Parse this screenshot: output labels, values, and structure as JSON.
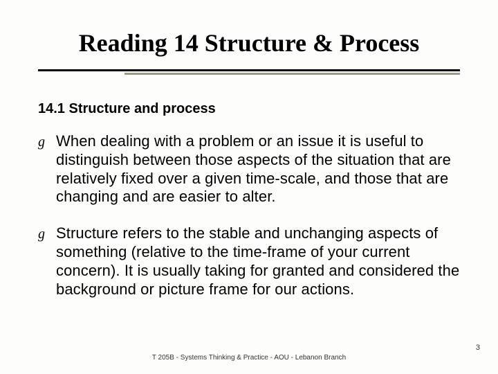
{
  "slide": {
    "title": "Reading 14 Structure & Process",
    "subheading": "14.1 Structure and process",
    "bullet_glyph": "g",
    "bullets": [
      "When dealing with a problem or an issue it is useful to distinguish between those aspects of the situation that are relatively fixed over a given time-scale, and those that are changing and are easier to alter.",
      "Structure refers to the stable and unchanging aspects of something (relative to the time-frame of your current concern). It is usually taking for granted and considered the background or picture frame for our actions."
    ],
    "footer": "T 205B - Systems Thinking & Practice - AOU - Lebanon Branch",
    "page_number": "3"
  },
  "style": {
    "background_color": "#fdfdfb",
    "title_font": "Times New Roman",
    "title_fontsize": 36,
    "title_weight": "bold",
    "title_color": "#000000",
    "subheading_fontsize": 20,
    "subheading_weight": "bold",
    "body_fontsize": 22,
    "body_color": "#000000",
    "rule_color_primary": "#000000",
    "rule_color_secondary": "#9a9a88",
    "footer_fontsize": 10,
    "pagenum_fontsize": 11
  }
}
